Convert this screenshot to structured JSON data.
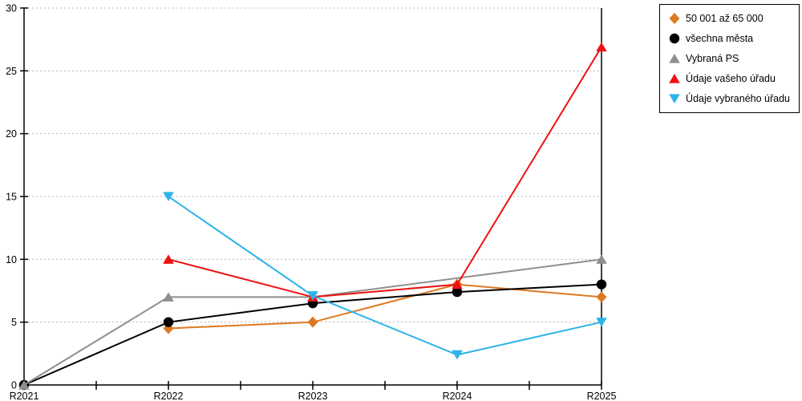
{
  "chart_data": {
    "type": "line",
    "title": "",
    "xlabel": "",
    "ylabel": "",
    "categories": [
      "R2021",
      "R2022",
      "R2023",
      "R2024",
      "R2025"
    ],
    "series": [
      {
        "name": "50 001 až 65 000",
        "marker": "diamond",
        "color": "#DE7921",
        "values": [
          null,
          4.5,
          5.0,
          8.0,
          7.0
        ]
      },
      {
        "name": "všechna města",
        "marker": "circle",
        "color": "#000000",
        "values": [
          0,
          5.0,
          6.5,
          7.4,
          8.0
        ]
      },
      {
        "name": "Vybraná PS",
        "marker": "triangle-up",
        "color": "#8F8F8F",
        "values": [
          0,
          7.0,
          7.0,
          null,
          10.0
        ]
      },
      {
        "name": "Údaje vašeho úřadu",
        "marker": "triangle-up",
        "color": "#EE1111",
        "values": [
          null,
          10.0,
          7.0,
          8.0,
          26.9
        ]
      },
      {
        "name": "Údaje vybraného úřadu",
        "marker": "triangle-down",
        "color": "#2EB3E8",
        "values": [
          null,
          15.0,
          7.1,
          2.4,
          5.0
        ]
      }
    ],
    "ylim": [
      0,
      30
    ],
    "yticks": [
      0,
      5,
      10,
      15,
      20,
      25,
      30
    ],
    "grid": "horizontal-dotted",
    "gridline_color": "#b4b4b4",
    "axis_color": "#000000",
    "legend_position": "top-right"
  }
}
